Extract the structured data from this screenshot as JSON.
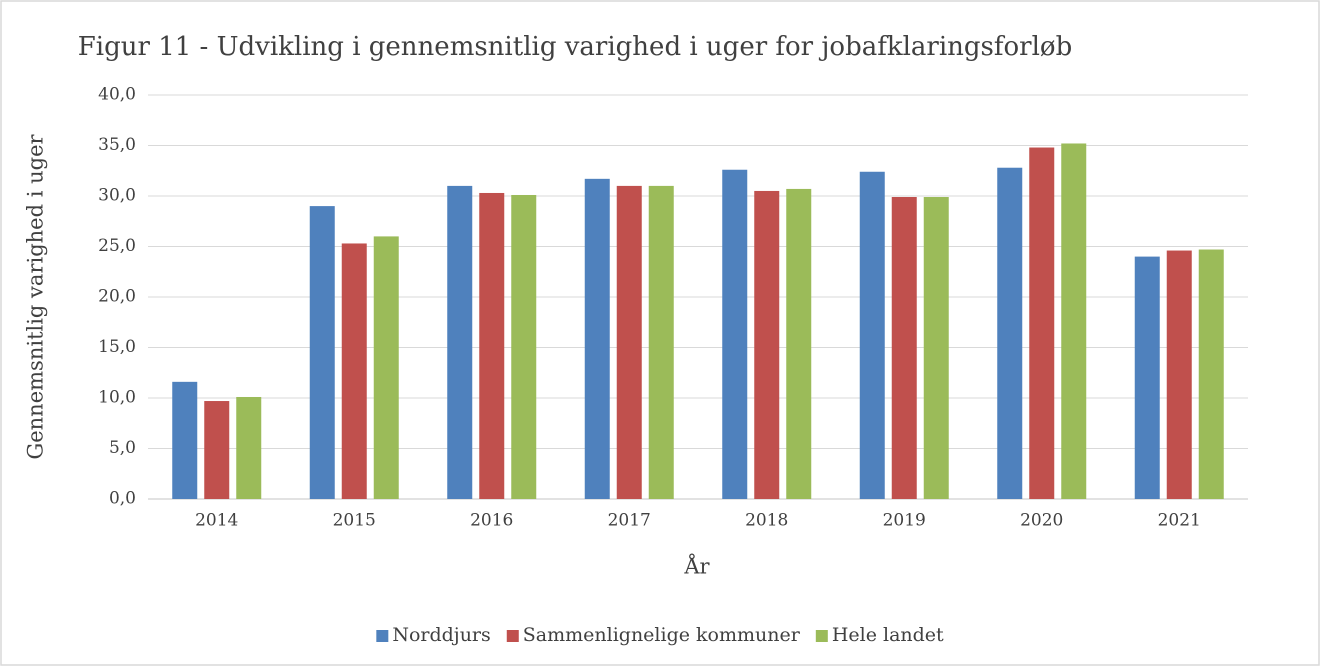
{
  "chart_data": {
    "type": "bar",
    "title": "Figur 11 - Udvikling i gennemsnitlig varighed i uger for jobafklaringsforløb",
    "x_label": "År",
    "y_label": "Gennemsnitlig varighed i uger",
    "categories": [
      "2014",
      "2015",
      "2016",
      "2017",
      "2018",
      "2019",
      "2020",
      "2021"
    ],
    "series": [
      {
        "name": "Norddjurs",
        "color": "#4f81bd",
        "values": [
          11.6,
          29.0,
          31.0,
          31.7,
          32.6,
          32.4,
          32.8,
          24.0
        ]
      },
      {
        "name": "Sammenlignelige kommuner",
        "color": "#c0504d",
        "values": [
          9.7,
          25.3,
          30.3,
          31.0,
          30.5,
          29.9,
          34.8,
          24.6
        ]
      },
      {
        "name": "Hele landet",
        "color": "#9bbb59",
        "values": [
          10.1,
          26.0,
          30.1,
          31.0,
          30.7,
          29.9,
          35.2,
          24.7
        ]
      }
    ],
    "ylim": [
      0,
      40
    ],
    "yticks": [
      {
        "value": 0,
        "label": "0,0"
      },
      {
        "value": 5,
        "label": "5,0"
      },
      {
        "value": 10,
        "label": "10,0"
      },
      {
        "value": 15,
        "label": "15,0"
      },
      {
        "value": 20,
        "label": "20,0"
      },
      {
        "value": 25,
        "label": "25,0"
      },
      {
        "value": 30,
        "label": "30,0"
      },
      {
        "value": 35,
        "label": "35,0"
      },
      {
        "value": 40,
        "label": "40,0"
      }
    ],
    "grid": true,
    "legend": "bottom"
  }
}
